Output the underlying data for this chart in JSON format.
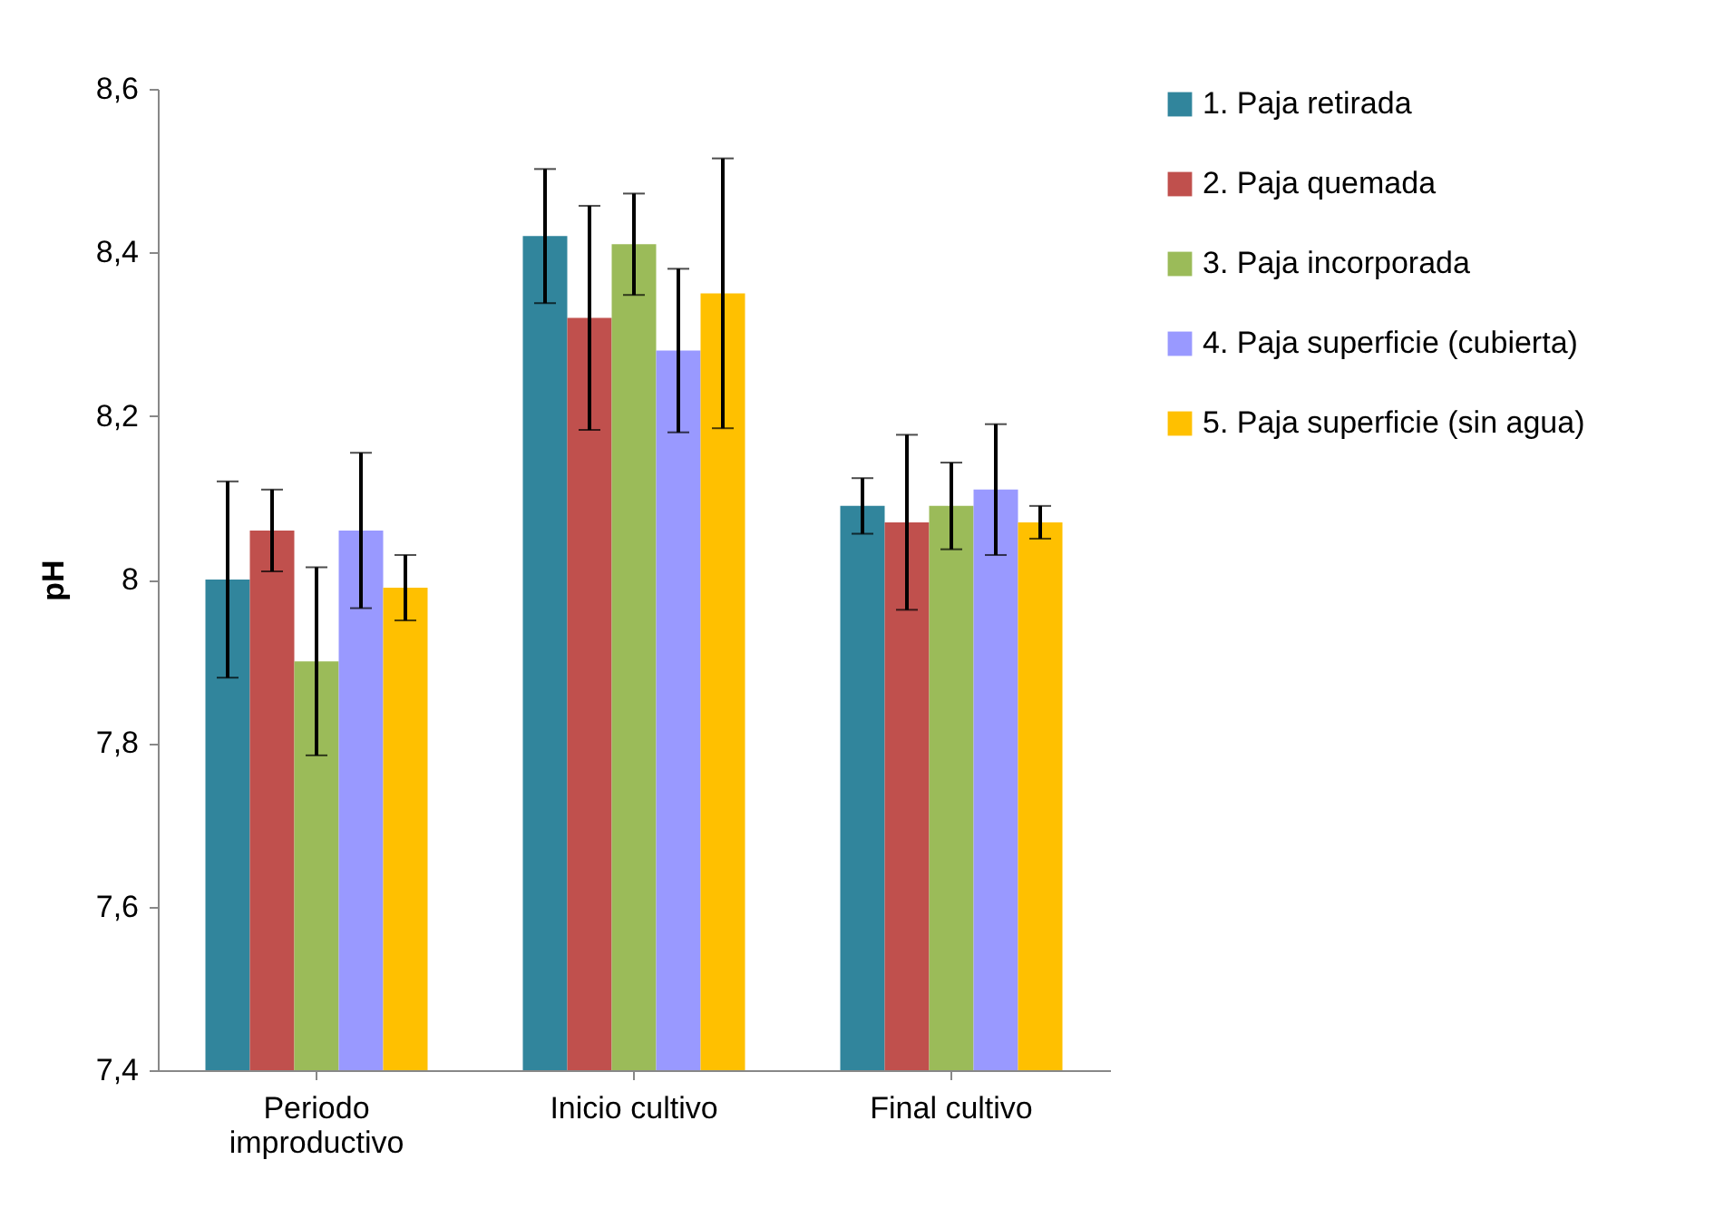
{
  "chart_data": {
    "type": "bar",
    "ylabel": "pH",
    "categories": [
      "Periodo improductivo",
      "Inicio cultivo",
      "Final cultivo"
    ],
    "series": [
      {
        "name": "1. Paja retirada",
        "color": "#31859c",
        "values": [
          8.0,
          8.42,
          8.09
        ],
        "errors": [
          0.12,
          0.082,
          0.034
        ]
      },
      {
        "name": "2. Paja quemada",
        "color": "#c0504d",
        "values": [
          8.06,
          8.32,
          8.07
        ],
        "errors": [
          0.05,
          0.137,
          0.107
        ]
      },
      {
        "name": "3. Paja incorporada",
        "color": "#9bbb59",
        "values": [
          7.9,
          8.41,
          8.09
        ],
        "errors": [
          0.115,
          0.062,
          0.053
        ]
      },
      {
        "name": "4. Paja superficie (cubierta)",
        "color": "#9999ff",
        "values": [
          8.06,
          8.28,
          8.11
        ],
        "errors": [
          0.095,
          0.1,
          0.08
        ]
      },
      {
        "name": "5. Paja superficie (sin agua)",
        "color": "#ffc000",
        "values": [
          7.99,
          8.35,
          8.07
        ],
        "errors": [
          0.04,
          0.165,
          0.02
        ]
      }
    ],
    "ylim": [
      7.4,
      8.6
    ],
    "yticks": [
      {
        "value": 7.4,
        "label": "7,4"
      },
      {
        "value": 7.6,
        "label": "7,6"
      },
      {
        "value": 7.8,
        "label": "7,8"
      },
      8,
      {
        "value": 8.2,
        "label": "8,2"
      },
      {
        "value": 8.4,
        "label": "8,4"
      },
      {
        "value": 8.6,
        "label": "8,6"
      }
    ],
    "legend": "right",
    "grid": false
  }
}
